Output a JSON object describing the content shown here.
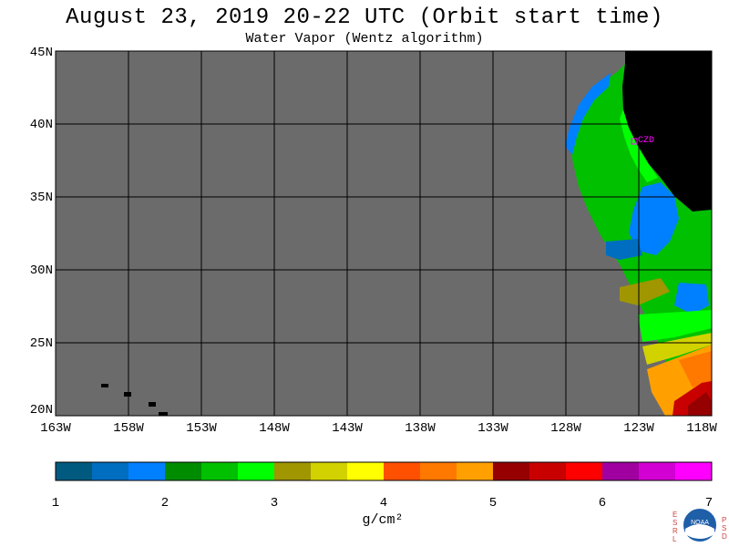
{
  "header": {
    "title": "August 23, 2019  20-22 UTC  (Orbit start time)",
    "subtitle": "Water Vapor (Wentz algorithm)"
  },
  "map": {
    "lat_labels": [
      "45N",
      "40N",
      "35N",
      "30N",
      "25N",
      "20N"
    ],
    "lon_labels": [
      "163W",
      "158W",
      "153W",
      "148W",
      "143W",
      "138W",
      "133W",
      "128W",
      "123W",
      "118W"
    ],
    "station_label": "CZD",
    "colors": {
      "no_data": "#6b6b6b",
      "land": "#000000",
      "grid": "#000000",
      "station": "#ff00ff"
    }
  },
  "colorbar": {
    "tick_labels": [
      "1",
      "2",
      "3",
      "4",
      "5",
      "6",
      "7"
    ],
    "units": "g/cm²",
    "colors": [
      "#005a80",
      "#006ec0",
      "#0080ff",
      "#008c00",
      "#00c000",
      "#00ff00",
      "#a09600",
      "#d2d200",
      "#ffff00",
      "#ff5000",
      "#ff7800",
      "#ffa000",
      "#960000",
      "#c80000",
      "#ff0000",
      "#a000a0",
      "#d200d2",
      "#ff00ff"
    ]
  },
  "logo": {
    "text": "NOAA",
    "side_left": "ESRL",
    "side_right": "PSD"
  }
}
